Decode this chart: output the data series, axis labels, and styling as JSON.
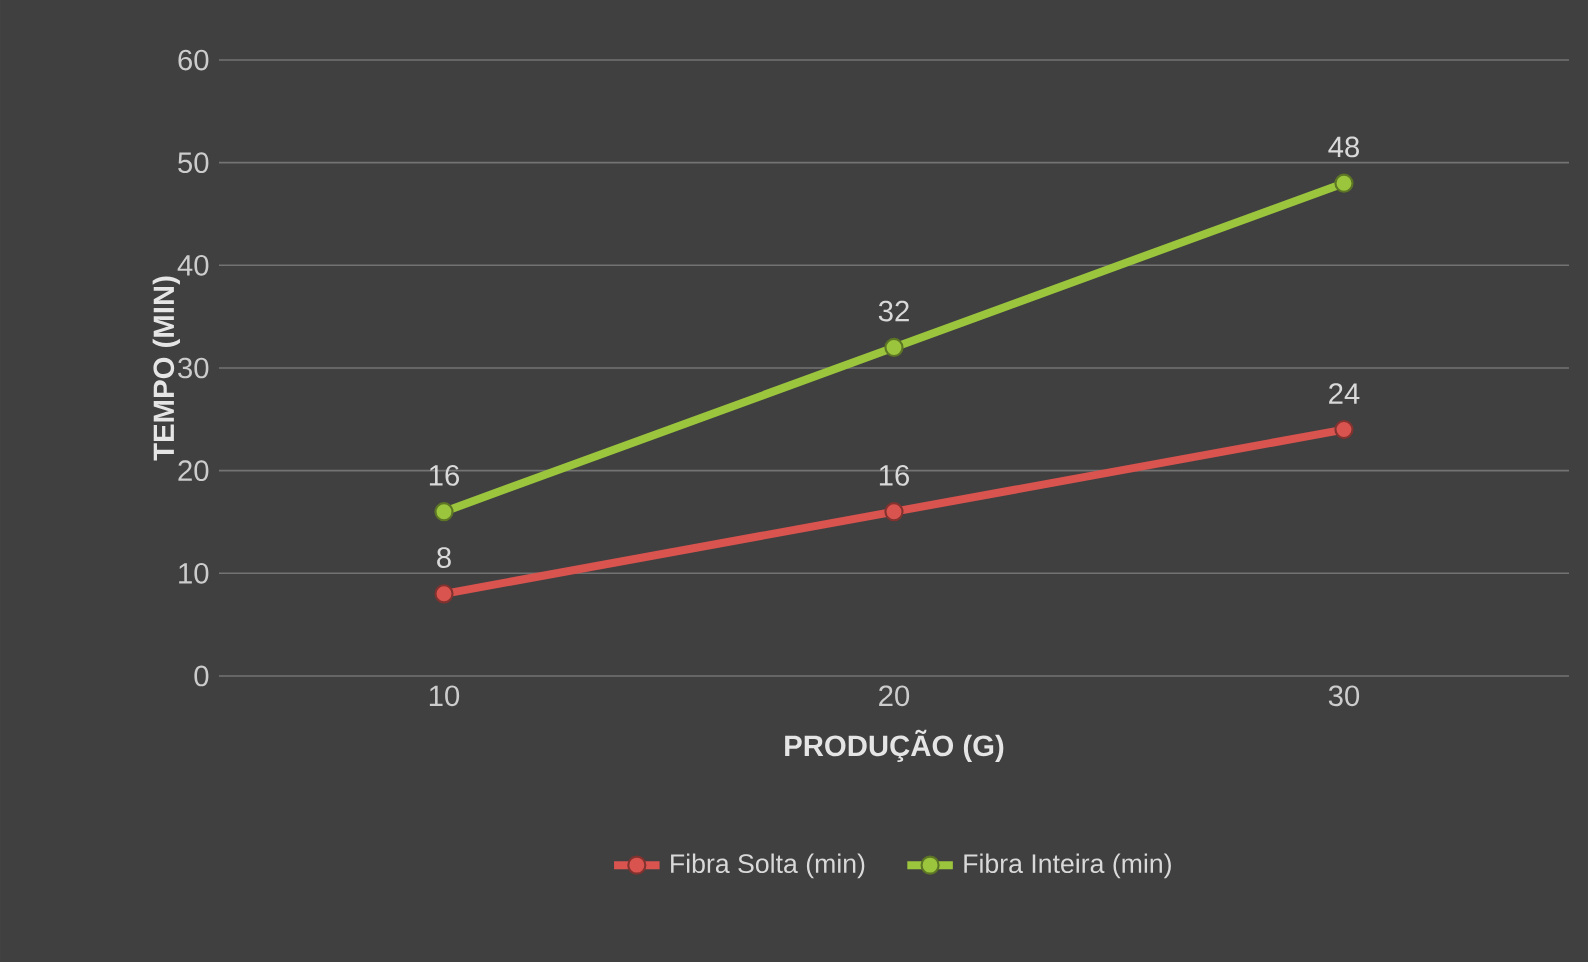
{
  "chart_data": {
    "type": "line",
    "xlabel": "PRODUÇÃO (G)",
    "ylabel": "TEMPO (MIN)",
    "categories": [
      "10",
      "20",
      "30"
    ],
    "series": [
      {
        "name": "Fibra Solta (min)",
        "color": "#d9534f",
        "values": [
          8,
          16,
          24
        ]
      },
      {
        "name": "Fibra Inteira (min)",
        "color": "#9bc53d",
        "values": [
          16,
          32,
          48
        ]
      }
    ],
    "ylim": [
      0,
      60
    ],
    "yticks": [
      0,
      10,
      20,
      30,
      40,
      50,
      60
    ],
    "grid": "y",
    "legend": "bottom",
    "marker": "circle",
    "line_style": "solid",
    "data_labels": true
  }
}
